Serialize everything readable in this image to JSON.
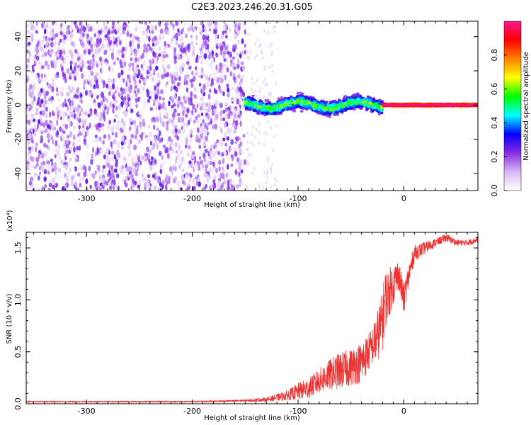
{
  "figure": {
    "title": "C2E3.2023.246.20.31.G05"
  },
  "chart_data": [
    {
      "type": "heatmap",
      "id": "spectrogram",
      "xlabel": "Height of straight line (km)",
      "ylabel": "Frequency (Hz)",
      "xlim": [
        -357,
        70
      ],
      "ylim": [
        -50,
        49
      ],
      "xticks": [
        -300,
        -200,
        -100,
        0
      ],
      "xtick_labels": [
        "-300",
        "-200",
        "-100",
        "0"
      ],
      "yticks": [
        -40,
        -20,
        0,
        20,
        40
      ],
      "ytick_labels": [
        "-40",
        "-20",
        "0",
        "20",
        "40"
      ],
      "colorbar": {
        "label": "Normalized spectral amplitude",
        "range": [
          0,
          1
        ],
        "ticks": [
          0.0,
          0.2,
          0.4,
          0.6,
          0.8
        ],
        "tick_labels": [
          "0.0",
          "0.2",
          "0.4",
          "0.6",
          "0.8"
        ],
        "colormap": [
          "#ffffff",
          "#d7b8f5",
          "#8a2be2",
          "#0000ff",
          "#00ffff",
          "#00ff00",
          "#ffff00",
          "#ff8000",
          "#ff0000",
          "#ff1493"
        ]
      },
      "regions": [
        {
          "x_range": [
            -357,
            -150
          ],
          "freq_range": [
            -50,
            49
          ],
          "amplitude": [
            0.0,
            0.25
          ],
          "pattern": "noise"
        },
        {
          "x_range": [
            -150,
            -20
          ],
          "freq_center": 0,
          "freq_spread": 7,
          "amplitude": [
            0.2,
            0.7
          ],
          "pattern": "signal"
        },
        {
          "x_range": [
            -20,
            70
          ],
          "freq_center": 0,
          "freq_spread": 1.5,
          "amplitude": [
            0.7,
            1.0
          ],
          "pattern": "signal"
        }
      ]
    },
    {
      "type": "line",
      "id": "snr",
      "xlabel": "Height of straight line (km)",
      "ylabel": "SNR (10 * v/v)",
      "yscale_label": "(x10⁴)",
      "xlim": [
        -357,
        70
      ],
      "ylim": [
        0,
        1.65
      ],
      "xticks": [
        -300,
        -200,
        -100,
        0
      ],
      "xtick_labels": [
        "-300",
        "-200",
        "-100",
        "0"
      ],
      "yticks": [
        0.0,
        0.5,
        1.0,
        1.5
      ],
      "ytick_labels": [
        "0.0",
        "0.5",
        "1.0",
        "1.5"
      ],
      "color": "#ee3333",
      "series": [
        {
          "x": [
            -357,
            -300,
            -250,
            -200,
            -150,
            -130,
            -110,
            -100,
            -90,
            -80,
            -70,
            -60,
            -50,
            -40,
            -30,
            -25,
            -20,
            -18,
            -15,
            -10,
            -5,
            0,
            5,
            10,
            20,
            30,
            40,
            50,
            60,
            70
          ],
          "y": [
            0.02,
            0.02,
            0.02,
            0.02,
            0.03,
            0.04,
            0.08,
            0.12,
            0.15,
            0.22,
            0.28,
            0.32,
            0.35,
            0.4,
            0.55,
            0.65,
            0.8,
            1.0,
            1.05,
            1.15,
            1.25,
            1.0,
            1.25,
            1.45,
            1.5,
            1.55,
            1.6,
            1.55,
            1.55,
            1.58
          ],
          "spread": [
            0.005,
            0.005,
            0.006,
            0.006,
            0.01,
            0.02,
            0.05,
            0.08,
            0.1,
            0.12,
            0.15,
            0.18,
            0.18,
            0.2,
            0.18,
            0.25,
            0.3,
            0.3,
            0.25,
            0.2,
            0.15,
            0.15,
            0.12,
            0.08,
            0.06,
            0.04,
            0.04,
            0.03,
            0.03,
            0.03
          ]
        }
      ]
    }
  ]
}
